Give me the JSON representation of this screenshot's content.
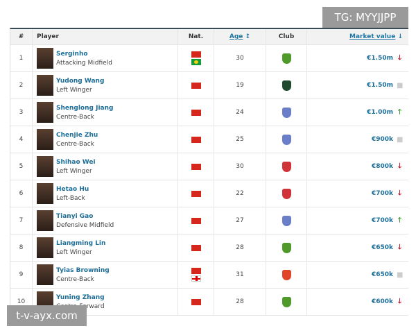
{
  "watermarks": {
    "top": "TG: MYYJJPP",
    "bottom": "t-v-ayx.com"
  },
  "header": {
    "num": "#",
    "player": "Player",
    "nat": "Nat.",
    "age": "Age",
    "club": "Club",
    "value": "Market value"
  },
  "colors": {
    "up": "#3a9a2a",
    "down": "#c0172b",
    "same": "#cccccc",
    "link": "#1d6e99"
  },
  "rows": [
    {
      "num": "1",
      "name": "Serginho",
      "pos": "Attacking Midfield",
      "flags": [
        "china",
        "brazil"
      ],
      "age": "30",
      "club": "#4f9a2a",
      "value": "€1.50m",
      "trend": "down"
    },
    {
      "num": "2",
      "name": "Yudong Wang",
      "pos": "Left Winger",
      "flags": [
        "china"
      ],
      "age": "19",
      "club": "#1f4a30",
      "value": "€1.50m",
      "trend": "same"
    },
    {
      "num": "3",
      "name": "Shenglong Jiang",
      "pos": "Centre-Back",
      "flags": [
        "china"
      ],
      "age": "24",
      "club": "#6a7fc8",
      "value": "€1.00m",
      "trend": "up"
    },
    {
      "num": "4",
      "name": "Chenjie Zhu",
      "pos": "Centre-Back",
      "flags": [
        "china"
      ],
      "age": "25",
      "club": "#6a7fc8",
      "value": "€900k",
      "trend": "same"
    },
    {
      "num": "5",
      "name": "Shihao Wei",
      "pos": "Left Winger",
      "flags": [
        "china"
      ],
      "age": "30",
      "club": "#d0343a",
      "value": "€800k",
      "trend": "down"
    },
    {
      "num": "6",
      "name": "Hetao Hu",
      "pos": "Left-Back",
      "flags": [
        "china"
      ],
      "age": "22",
      "club": "#d0343a",
      "value": "€700k",
      "trend": "down"
    },
    {
      "num": "7",
      "name": "Tianyi Gao",
      "pos": "Defensive Midfield",
      "flags": [
        "china"
      ],
      "age": "27",
      "club": "#6a7fc8",
      "value": "€700k",
      "trend": "up"
    },
    {
      "num": "8",
      "name": "Liangming Lin",
      "pos": "Left Winger",
      "flags": [
        "china"
      ],
      "age": "28",
      "club": "#4f9a2a",
      "value": "€650k",
      "trend": "down"
    },
    {
      "num": "9",
      "name": "Tyias Browning",
      "pos": "Centre-Back",
      "flags": [
        "china",
        "england"
      ],
      "age": "31",
      "club": "#e0452a",
      "value": "€650k",
      "trend": "same"
    },
    {
      "num": "10",
      "name": "Yuning Zhang",
      "pos": "Centre-Forward",
      "flags": [
        "china"
      ],
      "age": "28",
      "club": "#4f9a2a",
      "value": "€600k",
      "trend": "down"
    }
  ]
}
